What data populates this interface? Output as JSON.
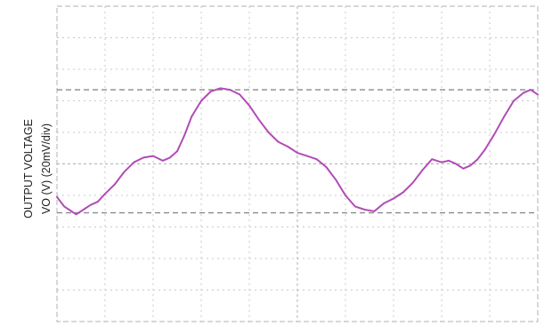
{
  "chart_data": {
    "type": "line",
    "title": "",
    "xlabel": "",
    "ylabel_lines": [
      "OUTPUT VOLTAGE",
      "VO (V) (20mV/div)"
    ],
    "grid": true,
    "x_divisions": 10,
    "y_divisions": 10,
    "xlim": [
      0,
      10
    ],
    "ylim": [
      0,
      10
    ],
    "colors": {
      "trace": "#b24bb7",
      "grid": "#c8c8c8",
      "frame": "#b0b0b0",
      "cursor": "#8a8a8a"
    },
    "cursor_levels": [
      7.35,
      3.45
    ],
    "series": [
      {
        "x": [
          0.0,
          0.15,
          0.25,
          0.4,
          0.55,
          0.7,
          0.85,
          1.0,
          1.2,
          1.4,
          1.6,
          1.8,
          2.0,
          2.2,
          2.35,
          2.5,
          2.65,
          2.8,
          3.0,
          3.2,
          3.4,
          3.6,
          3.8,
          4.0,
          4.2,
          4.4,
          4.6,
          4.8,
          5.0,
          5.2,
          5.4,
          5.6,
          5.8,
          6.0,
          6.2,
          6.4,
          6.6,
          6.8,
          7.0,
          7.2,
          7.4,
          7.6,
          7.8,
          8.0,
          8.15,
          8.3,
          8.45,
          8.6,
          8.75,
          8.9,
          9.1,
          9.3,
          9.5,
          9.7,
          9.85,
          10.0
        ],
        "y": [
          3.95,
          3.65,
          3.55,
          3.4,
          3.55,
          3.7,
          3.8,
          4.05,
          4.35,
          4.75,
          5.05,
          5.2,
          5.25,
          5.1,
          5.2,
          5.4,
          5.9,
          6.5,
          7.0,
          7.3,
          7.4,
          7.35,
          7.2,
          6.85,
          6.4,
          6.0,
          5.7,
          5.55,
          5.35,
          5.25,
          5.15,
          4.9,
          4.5,
          4.0,
          3.65,
          3.55,
          3.5,
          3.75,
          3.9,
          4.1,
          4.4,
          4.8,
          5.15,
          5.05,
          5.1,
          5.0,
          4.85,
          4.95,
          5.15,
          5.45,
          5.95,
          6.5,
          7.0,
          7.25,
          7.35,
          7.2
        ]
      }
    ]
  }
}
